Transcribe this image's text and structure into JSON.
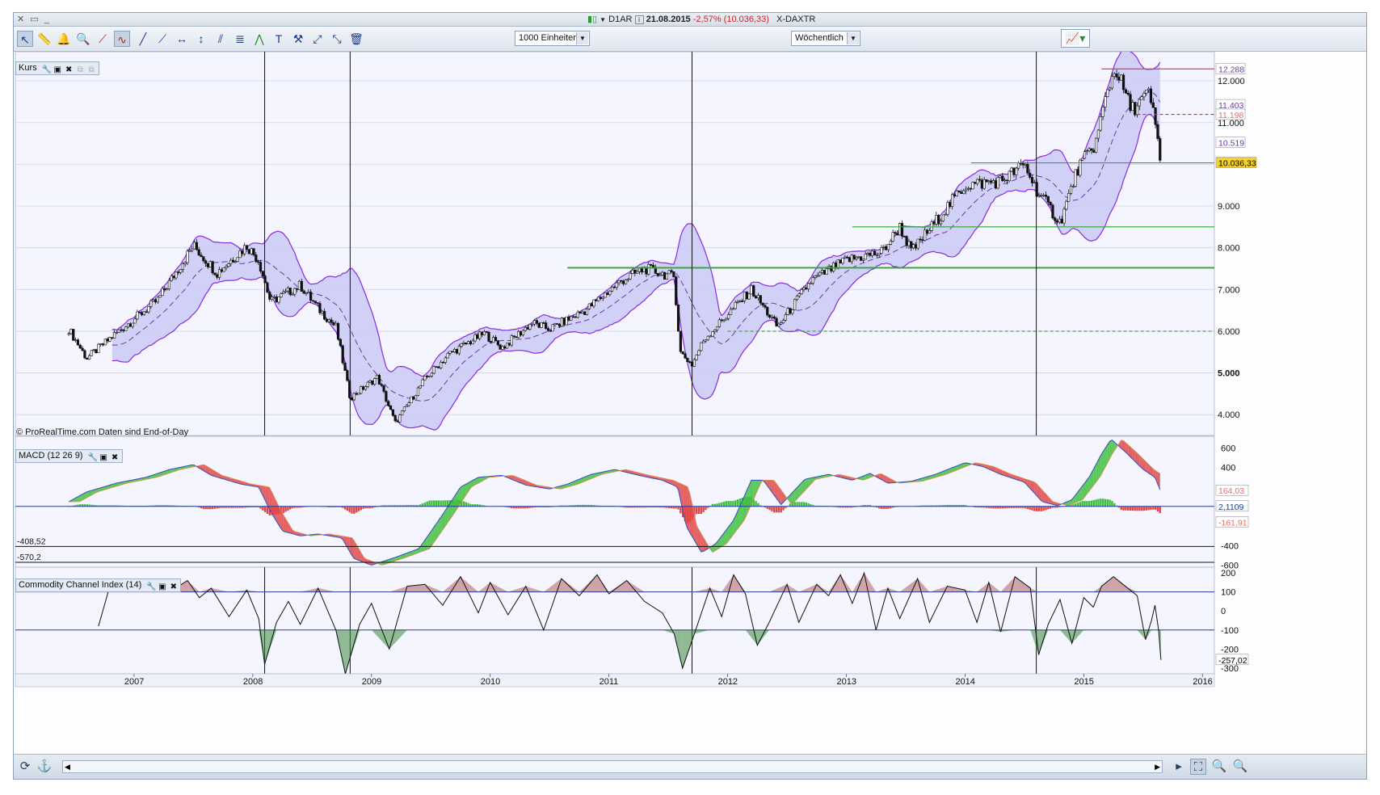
{
  "titlebar": {
    "window_controls": "✕ ▭ _",
    "symbol": "D1AR",
    "date": "21.08.2015",
    "change": "-2,57% (10.036,33)",
    "name": "X-DAXTR"
  },
  "toolbar": {
    "units_select": "1000 Einheiten",
    "period_select": "Wöchentlich"
  },
  "panels": {
    "price": {
      "label": "Kurs"
    },
    "macd": {
      "label": "MACD (12 26 9)"
    },
    "cci": {
      "label": "Commodity Channel Index (14)"
    }
  },
  "watermark": "© ProRealTime.com  Daten sind End-of-Day",
  "colors": {
    "band_fill": "#cdccf6",
    "band_line": "#8a2be2",
    "candle": "#111111",
    "ma": "#6a3aa8",
    "macd_pos": "#3fbf3f",
    "macd_neg": "#e04848",
    "support": "#2ea82e",
    "resistance": "#e03030",
    "last_price_bg": "#f5d22e",
    "grid": "#cfd4ea"
  },
  "chart_data": [
    {
      "type": "line",
      "name": "Kurs",
      "weekly_candles": true,
      "x_labels": [
        "2007",
        "2008",
        "2009",
        "2010",
        "2011",
        "2012",
        "2013",
        "2014",
        "2015",
        "2016"
      ],
      "ylim": [
        3500,
        12700
      ],
      "yticks": [
        4000,
        5000,
        6000,
        7000,
        8000,
        9000,
        10000,
        11000,
        12000
      ],
      "ytick_labels": [
        "4.000",
        "5.000",
        "6.000",
        "7.000",
        "8.000",
        "9.000",
        "10.000",
        "11.000",
        "12.000"
      ],
      "price_path": [
        [
          2006.45,
          6050
        ],
        [
          2006.6,
          5350
        ],
        [
          2006.85,
          5950
        ],
        [
          2007.2,
          6750
        ],
        [
          2007.5,
          8050
        ],
        [
          2007.7,
          7400
        ],
        [
          2007.95,
          8050
        ],
        [
          2008.05,
          7700
        ],
        [
          2008.15,
          6700
        ],
        [
          2008.4,
          7100
        ],
        [
          2008.55,
          6550
        ],
        [
          2008.7,
          6100
        ],
        [
          2008.82,
          4400
        ],
        [
          2009.05,
          4900
        ],
        [
          2009.2,
          3800
        ],
        [
          2009.45,
          4850
        ],
        [
          2009.65,
          5450
        ],
        [
          2009.95,
          5950
        ],
        [
          2010.1,
          5600
        ],
        [
          2010.35,
          6200
        ],
        [
          2010.5,
          6050
        ],
        [
          2010.8,
          6500
        ],
        [
          2011.1,
          7200
        ],
        [
          2011.3,
          7500
        ],
        [
          2011.55,
          7300
        ],
        [
          2011.6,
          5500
        ],
        [
          2011.7,
          5200
        ],
        [
          2011.8,
          5800
        ],
        [
          2012.0,
          6400
        ],
        [
          2012.2,
          7000
        ],
        [
          2012.42,
          6100
        ],
        [
          2012.7,
          7200
        ],
        [
          2013.0,
          7700
        ],
        [
          2013.3,
          7900
        ],
        [
          2013.45,
          8500
        ],
        [
          2013.55,
          7900
        ],
        [
          2013.8,
          8800
        ],
        [
          2014.0,
          9500
        ],
        [
          2014.3,
          9600
        ],
        [
          2014.5,
          10000
        ],
        [
          2014.6,
          9400
        ],
        [
          2014.8,
          8600
        ],
        [
          2014.95,
          9900
        ],
        [
          2015.1,
          10500
        ],
        [
          2015.2,
          11800
        ],
        [
          2015.27,
          12300
        ],
        [
          2015.4,
          11300
        ],
        [
          2015.55,
          11700
        ],
        [
          2015.6,
          11000
        ],
        [
          2015.65,
          10036
        ]
      ],
      "bollinger_band": true,
      "moving_average": true,
      "hlines": [
        {
          "y": 12288,
          "style": "solid",
          "color": "resistance",
          "x_from": 2015.15
        },
        {
          "y": 11198,
          "style": "dashed",
          "color": "resistance",
          "x_from": 2015.45
        },
        {
          "y": 10036,
          "style": "solid",
          "color": "support",
          "x_from": 2014.05
        },
        {
          "y": 8500,
          "style": "solid",
          "color": "support",
          "x_from": 2013.05
        },
        {
          "y": 7520,
          "style": "solid",
          "color": "support",
          "x_from": 2010.65
        },
        {
          "y": 6000,
          "style": "dashed",
          "color": "support",
          "x_from": 2012.0
        }
      ],
      "vlines": [
        2008.1,
        2008.82,
        2011.7,
        2014.6
      ],
      "value_labels": [
        {
          "text": "12.288",
          "y": 12288,
          "color": "#6a3aa8",
          "bg": "#ffffff"
        },
        {
          "text": "11.403",
          "y": 11420,
          "color": "#6a3aa8",
          "bg": "#ffffff"
        },
        {
          "text": "11.198",
          "y": 11190,
          "color": "#e07070",
          "bg": "#ffffff"
        },
        {
          "text": "10.519",
          "y": 10519,
          "color": "#6a3aa8",
          "bg": "#ffffff"
        },
        {
          "text": "10.036,33",
          "y": 10036,
          "color": "#000000",
          "bg": "last_price_bg"
        }
      ]
    },
    {
      "type": "bar",
      "name": "MACD (12 26 9)",
      "ylim": [
        -620,
        720
      ],
      "yticks": [
        600,
        400,
        -400,
        -600
      ],
      "ytick_labels": [
        "600",
        "400",
        "-400",
        "-600"
      ],
      "left_labels": [
        {
          "text": "-408,52",
          "y": -408.52
        },
        {
          "text": "-570,2",
          "y": -570.2
        }
      ],
      "hline_values": [
        2.11,
        -408.52,
        -570.2
      ],
      "macd_path": [
        [
          2006.45,
          50
        ],
        [
          2006.6,
          150
        ],
        [
          2006.85,
          240
        ],
        [
          2007.1,
          300
        ],
        [
          2007.3,
          380
        ],
        [
          2007.5,
          430
        ],
        [
          2007.65,
          320
        ],
        [
          2007.9,
          230
        ],
        [
          2008.05,
          200
        ],
        [
          2008.15,
          -50
        ],
        [
          2008.25,
          -250
        ],
        [
          2008.4,
          -300
        ],
        [
          2008.55,
          -280
        ],
        [
          2008.75,
          -320
        ],
        [
          2008.85,
          -530
        ],
        [
          2009.0,
          -600
        ],
        [
          2009.2,
          -520
        ],
        [
          2009.4,
          -430
        ],
        [
          2009.6,
          -80
        ],
        [
          2009.75,
          200
        ],
        [
          2009.9,
          300
        ],
        [
          2010.1,
          320
        ],
        [
          2010.3,
          220
        ],
        [
          2010.5,
          180
        ],
        [
          2010.65,
          230
        ],
        [
          2010.85,
          330
        ],
        [
          2011.05,
          380
        ],
        [
          2011.25,
          320
        ],
        [
          2011.45,
          270
        ],
        [
          2011.58,
          200
        ],
        [
          2011.65,
          -200
        ],
        [
          2011.78,
          -470
        ],
        [
          2011.9,
          -380
        ],
        [
          2012.05,
          -140
        ],
        [
          2012.2,
          270
        ],
        [
          2012.3,
          270
        ],
        [
          2012.45,
          20
        ],
        [
          2012.65,
          280
        ],
        [
          2012.85,
          330
        ],
        [
          2013.05,
          270
        ],
        [
          2013.2,
          340
        ],
        [
          2013.35,
          240
        ],
        [
          2013.55,
          260
        ],
        [
          2013.75,
          330
        ],
        [
          2014.0,
          450
        ],
        [
          2014.15,
          410
        ],
        [
          2014.3,
          330
        ],
        [
          2014.5,
          250
        ],
        [
          2014.65,
          50
        ],
        [
          2014.78,
          10
        ],
        [
          2014.9,
          70
        ],
        [
          2015.05,
          310
        ],
        [
          2015.15,
          540
        ],
        [
          2015.23,
          690
        ],
        [
          2015.35,
          560
        ],
        [
          2015.5,
          380
        ],
        [
          2015.6,
          300
        ],
        [
          2015.65,
          150
        ]
      ],
      "signal_lag": 0.09,
      "hist_scale": 0.4,
      "value_labels": [
        {
          "text": "164,03",
          "y": 164.03,
          "color": "#e07070"
        },
        {
          "text": "2,1109",
          "y": 2.11,
          "color": "#1a3a8a"
        },
        {
          "text": "-161,91",
          "y": -161.91,
          "color": "#e07070"
        }
      ]
    },
    {
      "type": "line",
      "name": "Commodity Channel Index (14)",
      "ylim": [
        -330,
        230
      ],
      "yticks": [
        200,
        100,
        0,
        -100,
        -200,
        -300
      ],
      "ytick_labels": [
        "200",
        "100",
        "0",
        "-100",
        "-200",
        "-300"
      ],
      "hline_values": [
        100,
        -100
      ],
      "cci_path": [
        [
          2006.7,
          -80
        ],
        [
          2006.8,
          140
        ],
        [
          2007.0,
          120
        ],
        [
          2007.2,
          150
        ],
        [
          2007.35,
          120
        ],
        [
          2007.45,
          160
        ],
        [
          2007.55,
          70
        ],
        [
          2007.65,
          120
        ],
        [
          2007.8,
          -30
        ],
        [
          2007.95,
          110
        ],
        [
          2008.05,
          -40
        ],
        [
          2008.1,
          -280
        ],
        [
          2008.2,
          -60
        ],
        [
          2008.3,
          50
        ],
        [
          2008.4,
          -70
        ],
        [
          2008.55,
          120
        ],
        [
          2008.7,
          -100
        ],
        [
          2008.78,
          -330
        ],
        [
          2008.9,
          -70
        ],
        [
          2009.0,
          40
        ],
        [
          2009.15,
          -200
        ],
        [
          2009.3,
          130
        ],
        [
          2009.45,
          140
        ],
        [
          2009.6,
          30
        ],
        [
          2009.75,
          180
        ],
        [
          2009.9,
          -10
        ],
        [
          2010.0,
          150
        ],
        [
          2010.15,
          -20
        ],
        [
          2010.3,
          130
        ],
        [
          2010.45,
          -100
        ],
        [
          2010.6,
          170
        ],
        [
          2010.75,
          80
        ],
        [
          2010.9,
          190
        ],
        [
          2011.0,
          90
        ],
        [
          2011.15,
          160
        ],
        [
          2011.3,
          50
        ],
        [
          2011.45,
          -10
        ],
        [
          2011.55,
          -120
        ],
        [
          2011.62,
          -300
        ],
        [
          2011.72,
          -120
        ],
        [
          2011.85,
          120
        ],
        [
          2011.95,
          -30
        ],
        [
          2012.05,
          190
        ],
        [
          2012.15,
          90
        ],
        [
          2012.25,
          -180
        ],
        [
          2012.35,
          -60
        ],
        [
          2012.5,
          140
        ],
        [
          2012.6,
          -60
        ],
        [
          2012.75,
          140
        ],
        [
          2012.85,
          80
        ],
        [
          2012.95,
          190
        ],
        [
          2013.05,
          40
        ],
        [
          2013.15,
          200
        ],
        [
          2013.25,
          -100
        ],
        [
          2013.35,
          120
        ],
        [
          2013.45,
          -40
        ],
        [
          2013.6,
          170
        ],
        [
          2013.7,
          -60
        ],
        [
          2013.85,
          130
        ],
        [
          2014.0,
          110
        ],
        [
          2014.1,
          -60
        ],
        [
          2014.2,
          150
        ],
        [
          2014.3,
          -110
        ],
        [
          2014.42,
          180
        ],
        [
          2014.55,
          120
        ],
        [
          2014.62,
          -230
        ],
        [
          2014.7,
          -70
        ],
        [
          2014.8,
          60
        ],
        [
          2014.9,
          -170
        ],
        [
          2015.0,
          70
        ],
        [
          2015.08,
          20
        ],
        [
          2015.15,
          130
        ],
        [
          2015.25,
          180
        ],
        [
          2015.35,
          130
        ],
        [
          2015.45,
          80
        ],
        [
          2015.52,
          -150
        ],
        [
          2015.57,
          -50
        ],
        [
          2015.6,
          30
        ],
        [
          2015.63,
          -100
        ],
        [
          2015.65,
          -257
        ]
      ],
      "value_labels": [
        {
          "text": "-257,02",
          "y": -257.02,
          "color": "#000000"
        }
      ]
    }
  ]
}
